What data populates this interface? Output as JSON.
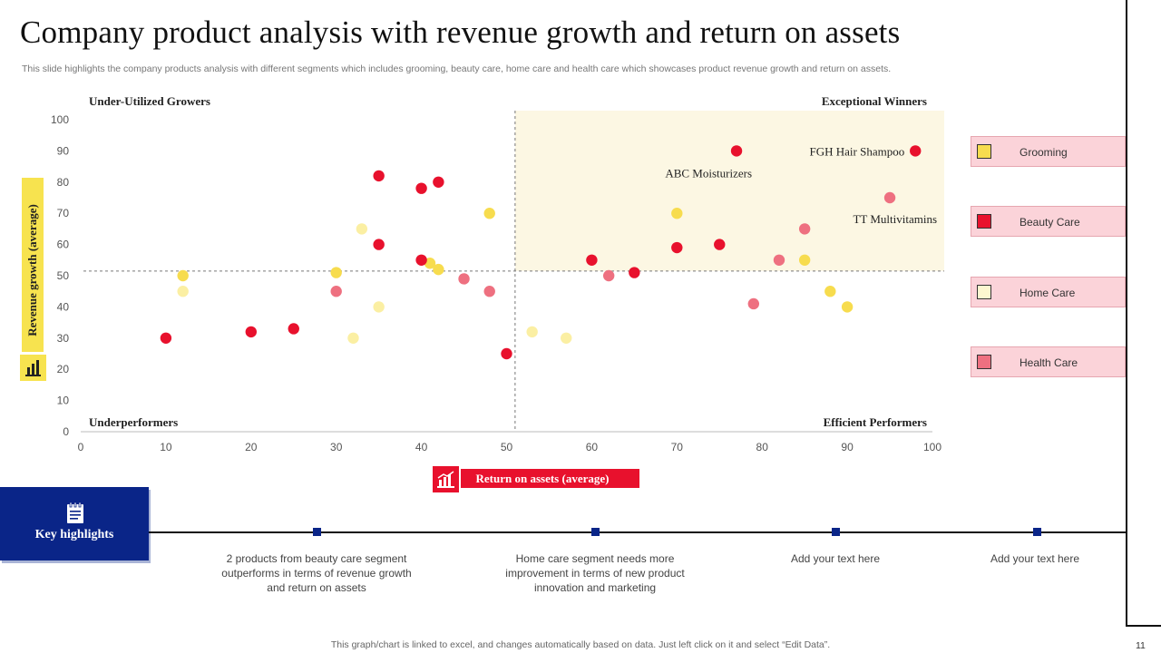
{
  "slide": {
    "title": "Company product analysis with revenue growth and return on assets",
    "subtitle": "This slide highlights the company products analysis with different segments which includes grooming, beauty care, home care and health care which showcases product revenue growth and return on assets.",
    "footer": "This graph/chart is linked to excel,  and changes automatically based on data. Just left click on it and select “Edit Data”.",
    "page_number": "11"
  },
  "chart_data": {
    "type": "scatter",
    "title": "",
    "xlabel": "Return on assets (average)",
    "ylabel": "Revenue growth (average)",
    "xlim": [
      0,
      100
    ],
    "ylim": [
      0,
      100
    ],
    "xticks": [
      0,
      10,
      20,
      30,
      40,
      50,
      60,
      70,
      80,
      90,
      100
    ],
    "yticks": [
      0,
      10,
      20,
      30,
      40,
      50,
      60,
      70,
      80,
      90,
      100
    ],
    "reference_lines": {
      "x": 51,
      "y": 51.5
    },
    "quadrants": {
      "top_left": "Under-Utilized Growers",
      "top_right": "Exceptional Winners",
      "bottom_left": "Underperformers",
      "bottom_right": "Efficient Performers"
    },
    "highlight_quadrant": "top-right",
    "series": [
      {
        "name": "Grooming",
        "color": "#f7dc4e",
        "points": [
          [
            12,
            50
          ],
          [
            30,
            51
          ],
          [
            41,
            54
          ],
          [
            42,
            52
          ],
          [
            48,
            70
          ],
          [
            70,
            70
          ],
          [
            85,
            55
          ],
          [
            88,
            45
          ],
          [
            90,
            40
          ]
        ]
      },
      {
        "name": "Beauty Care",
        "color": "#e8112d",
        "points": [
          [
            10,
            30
          ],
          [
            20,
            32
          ],
          [
            25,
            33
          ],
          [
            35,
            82
          ],
          [
            35,
            60
          ],
          [
            40,
            78
          ],
          [
            40,
            55
          ],
          [
            42,
            80
          ],
          [
            50,
            25
          ],
          [
            60,
            55
          ],
          [
            65,
            51
          ],
          [
            70,
            59
          ],
          [
            75,
            60
          ],
          [
            77,
            90
          ],
          [
            98,
            90
          ]
        ]
      },
      {
        "name": "Home Care",
        "color": "#fbefa3",
        "points": [
          [
            12,
            45
          ],
          [
            32,
            30
          ],
          [
            33,
            65
          ],
          [
            35,
            40
          ],
          [
            53,
            32
          ],
          [
            57,
            30
          ]
        ]
      },
      {
        "name": "Health Care",
        "color": "#ee7080",
        "points": [
          [
            30,
            45
          ],
          [
            45,
            49
          ],
          [
            48,
            45
          ],
          [
            62,
            50
          ],
          [
            79,
            41
          ],
          [
            82,
            55
          ],
          [
            85,
            65
          ],
          [
            95,
            75
          ]
        ]
      }
    ],
    "annotations": [
      {
        "text": "FGH Hair Shampoo",
        "x": 98,
        "y": 90
      },
      {
        "text": "ABC Moisturizers",
        "x": 77,
        "y": 90
      },
      {
        "text": "TT Multivitamins",
        "x": 95,
        "y": 75
      }
    ],
    "legend_placement": "right"
  },
  "legend": [
    {
      "label": "Grooming",
      "color": "#f7dc4e"
    },
    {
      "label": "Beauty Care",
      "color": "#e8112d"
    },
    {
      "label": "Home Care",
      "color": "#fdf7d0"
    },
    {
      "label": "Health Care",
      "color": "#ee7080"
    }
  ],
  "key_highlights": {
    "label": "Key highlights",
    "items": [
      "2 products from  beauty care segment outperforms  in terms of revenue growth and return on assets",
      "Home care segment needs more improvement  in terms of new product innovation  and marketing",
      "Add your text here",
      "Add your text here"
    ]
  }
}
